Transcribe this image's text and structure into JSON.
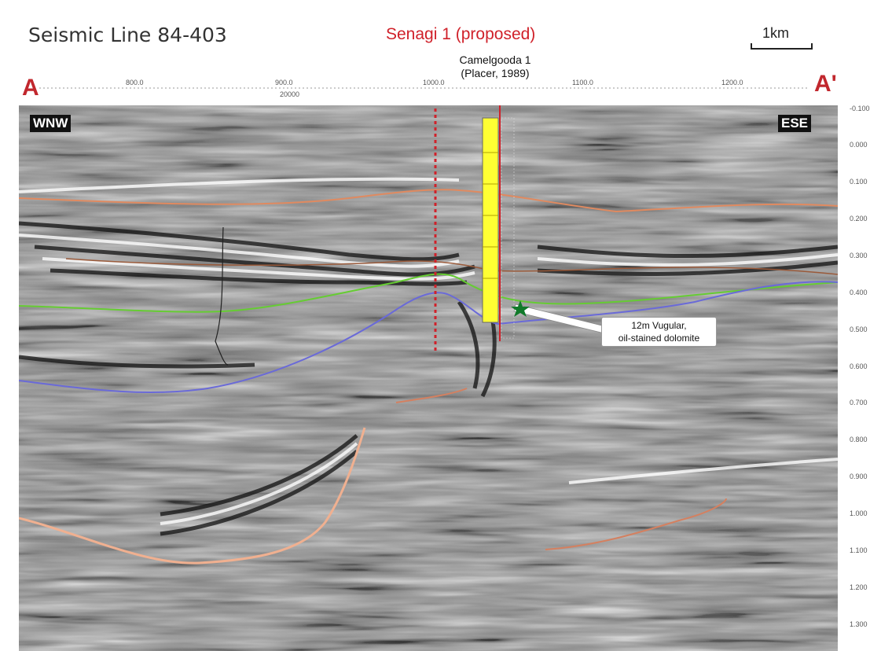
{
  "title": "Seismic Line 84-403",
  "proposed_well": "Senagi 1 (proposed)",
  "existing_well": {
    "name": "Camelgooda 1",
    "detail": "(Placer, 1989)"
  },
  "scale_label": "1km",
  "endpoints": {
    "start": "A",
    "end": "A'"
  },
  "orientation": {
    "left": "WNW",
    "right": "ESE"
  },
  "top_axis": {
    "labels": [
      "800.0",
      "900.0",
      "1000.0",
      "1100.0",
      "1200.0"
    ],
    "sub_label": "20000"
  },
  "time_axis_labels": [
    "-0.100",
    "0.000",
    "0.100",
    "0.200",
    "0.300",
    "0.400",
    "0.500",
    "0.600",
    "0.700",
    "0.800",
    "0.900",
    "1.000",
    "1.100",
    "1.200",
    "1.300"
  ],
  "callout": {
    "line1": "12m Vugular,",
    "line2": "oil-stained dolomite"
  },
  "colors": {
    "proposed": "#d0212a",
    "endpoint": "#c1272d",
    "horizon_orange": "#e08a60",
    "horizon_green": "#66cc33",
    "horizon_blue": "#6a6ad8",
    "well_log": "#ffff33",
    "marker": "#117a2a"
  }
}
